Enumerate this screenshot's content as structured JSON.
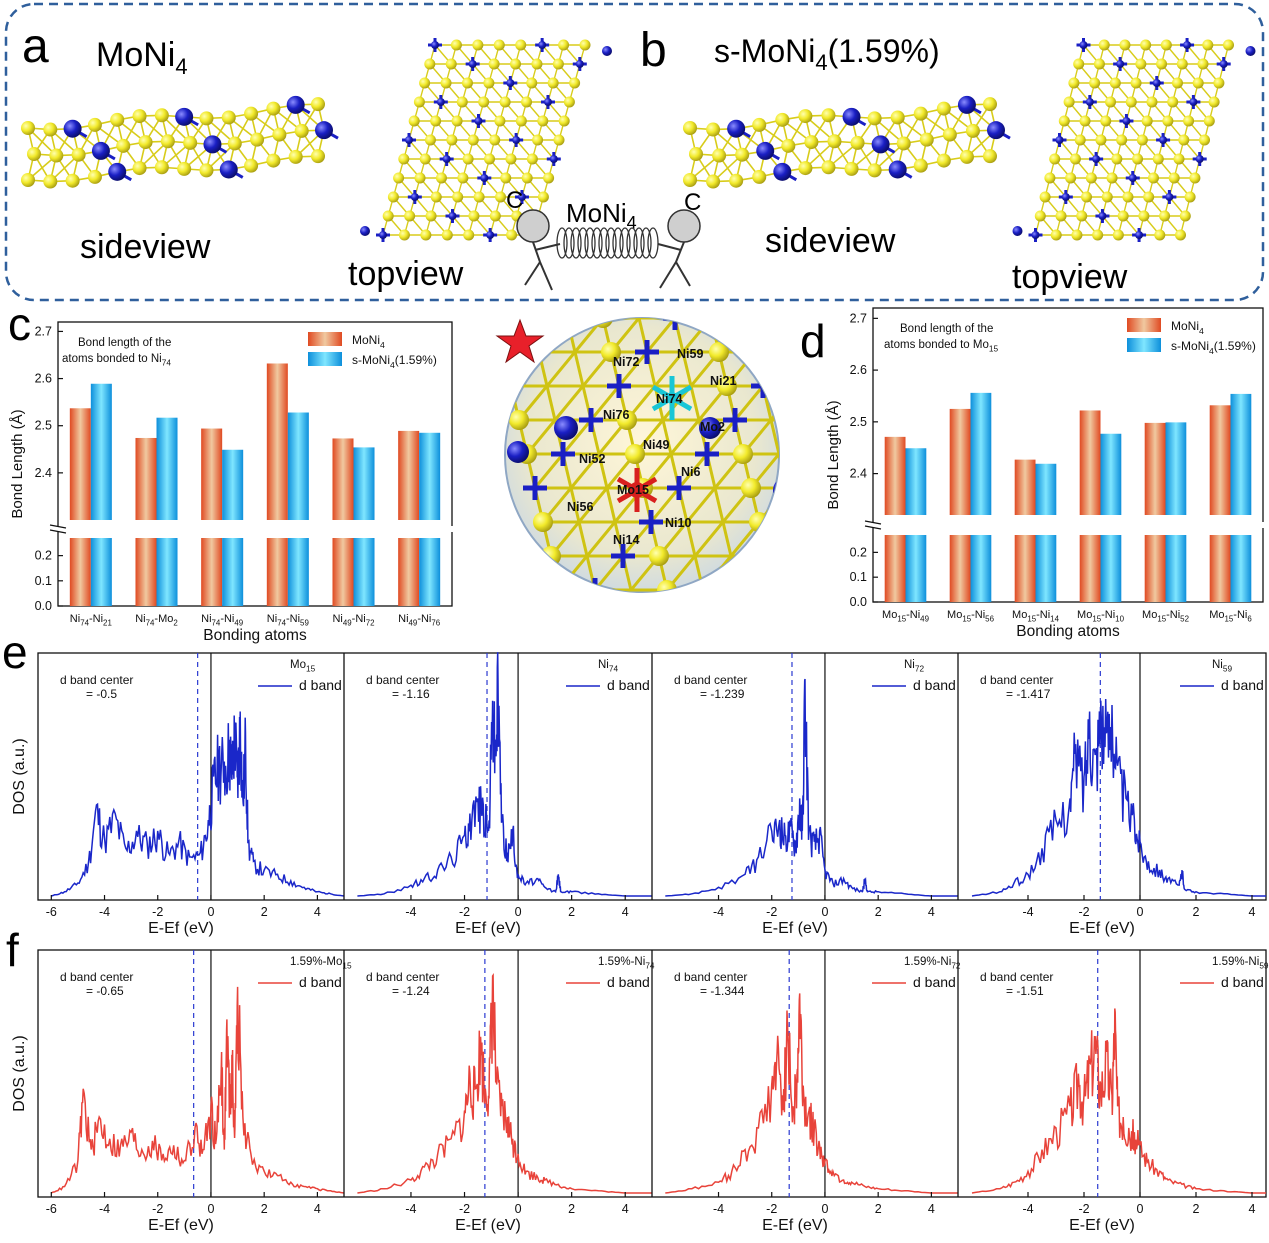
{
  "panel_letters": {
    "a": "a",
    "b": "b",
    "c": "c",
    "d": "d",
    "e": "e",
    "f": "f"
  },
  "structures": {
    "a": {
      "title": "MoNi",
      "title_sub": "4",
      "side_label": "sideview",
      "top_label": "topview"
    },
    "b": {
      "title": "s-MoNi",
      "title_sub": "4",
      "title_suffix": "(1.59%)",
      "side_label": "sideview",
      "top_label": "topview"
    },
    "spring": {
      "label": "MoNi",
      "label_sub": "4",
      "left_letter": "C",
      "right_letter": "C"
    }
  },
  "center_atom_labels": [
    "Ni72",
    "Ni59",
    "Ni21",
    "Ni74",
    "Ni76",
    "Mo2",
    "Ni49",
    "Ni52",
    "Ni6",
    "Mo15",
    "Ni56",
    "Ni10",
    "Ni14"
  ],
  "colors": {
    "ni_atom": "#f2ea2b",
    "mo_atom": "#1a1fc4",
    "bar_moni4": "#e0552a",
    "bar_smoni4": "#17a6e6",
    "e_line": "#1a27c9",
    "f_line": "#e8433a",
    "frame": "#2f5f9c"
  },
  "chart_data": [
    {
      "id": "c",
      "type": "bar",
      "title": "Bond length of the atoms bonded to Ni74",
      "title_lines": [
        "Bond length of the",
        "atoms bonded to Ni",
        "74"
      ],
      "xlabel": "Bonding atoms",
      "ylabel": "Bond Length (Å)",
      "categories": [
        {
          "a": "Ni",
          "as": "74",
          "b": "Ni",
          "bs": "21"
        },
        {
          "a": "Ni",
          "as": "74",
          "b": "Mo",
          "bs": "2"
        },
        {
          "a": "Ni",
          "as": "74",
          "b": "Ni",
          "bs": "49"
        },
        {
          "a": "Ni",
          "as": "74",
          "b": "Ni",
          "bs": "59"
        },
        {
          "a": "Ni",
          "as": "49",
          "b": "Ni",
          "bs": "72"
        },
        {
          "a": "Ni",
          "as": "49",
          "b": "Ni",
          "bs": "76"
        }
      ],
      "series": [
        {
          "name": "MoNi4",
          "label": "MoNi",
          "label_sub": "4",
          "label_suffix": "",
          "values": [
            2.537,
            2.474,
            2.494,
            2.632,
            2.473,
            2.489
          ]
        },
        {
          "name": "s-MoNi4(1.59%)",
          "label": "s-MoNi",
          "label_sub": "4",
          "label_suffix": "(1.59%)",
          "values": [
            2.589,
            2.517,
            2.449,
            2.528,
            2.454,
            2.485
          ]
        }
      ],
      "axis_break": true,
      "upper_ylim": [
        2.3,
        2.72
      ],
      "upper_ticks": [
        "2.4",
        "2.5",
        "2.6",
        "2.7"
      ],
      "lower_ylim": [
        0,
        0.27
      ],
      "lower_ticks": [
        "0.0",
        "0.1",
        "0.2"
      ],
      "legend": "top-right",
      "grid": false
    },
    {
      "id": "d",
      "type": "bar",
      "title": "Bond length of the atoms bonded to Mo15",
      "title_lines": [
        "Bond length of the",
        "atoms bonded to Mo",
        "15"
      ],
      "xlabel": "Bonding atoms",
      "ylabel": "Bond Length (Å)",
      "categories": [
        {
          "a": "Mo",
          "as": "15",
          "b": "Ni",
          "bs": "49"
        },
        {
          "a": "Mo",
          "as": "15",
          "b": "Ni",
          "bs": "56"
        },
        {
          "a": "Mo",
          "as": "15",
          "b": "Ni",
          "bs": "14"
        },
        {
          "a": "Mo",
          "as": "15",
          "b": "Ni",
          "bs": "10"
        },
        {
          "a": "Mo",
          "as": "15",
          "b": "Ni",
          "bs": "52"
        },
        {
          "a": "Mo",
          "as": "15",
          "b": "Ni",
          "bs": "6"
        }
      ],
      "series": [
        {
          "name": "MoNi4",
          "label": "MoNi",
          "label_sub": "4",
          "label_suffix": "",
          "values": [
            2.471,
            2.525,
            2.427,
            2.522,
            2.498,
            2.532
          ]
        },
        {
          "name": "s-MoNi4(1.59%)",
          "label": "s-MoNi",
          "label_sub": "4",
          "label_suffix": "(1.59%)",
          "values": [
            2.449,
            2.556,
            2.419,
            2.477,
            2.499,
            2.554
          ]
        }
      ],
      "axis_break": true,
      "upper_ylim": [
        2.32,
        2.72
      ],
      "upper_ticks": [
        "2.4",
        "2.5",
        "2.6",
        "2.7"
      ],
      "lower_ylim": [
        0,
        0.27
      ],
      "lower_ticks": [
        "0.0",
        "0.1",
        "0.2"
      ],
      "legend": "top-right",
      "grid": false
    },
    {
      "id": "e",
      "type": "line",
      "ylabel": "DOS (a.u.)",
      "xlabel": "E-Ef (eV)",
      "legend": "top-right",
      "panels": [
        {
          "atom": "Mo",
          "atom_sub": "15",
          "atom_prefix": "",
          "legend": "d band",
          "center_title": "d band center",
          "center_value": "= -0.5",
          "center": -0.5,
          "xlim": [
            -6.5,
            5
          ],
          "xticks": [
            "-6",
            "-4",
            "-2",
            "0",
            "2",
            "4"
          ],
          "x": [
            -6.0,
            -5.5,
            -5.0,
            -4.6,
            -4.3,
            -4.0,
            -3.6,
            -3.2,
            -2.8,
            -2.4,
            -2.0,
            -1.6,
            -1.2,
            -0.8,
            -0.4,
            -0.1,
            0.1,
            0.3,
            0.5,
            0.7,
            0.8,
            0.9,
            1.0,
            1.1,
            1.2,
            1.3,
            1.4,
            1.6,
            2.0,
            2.5,
            3.0,
            3.5,
            4.0,
            4.5,
            5.0
          ],
          "y": [
            0.0,
            0.02,
            0.06,
            0.16,
            0.42,
            0.27,
            0.38,
            0.22,
            0.3,
            0.25,
            0.3,
            0.2,
            0.26,
            0.18,
            0.2,
            0.35,
            0.55,
            0.65,
            0.62,
            0.72,
            0.6,
            0.8,
            0.55,
            0.85,
            0.45,
            0.75,
            0.25,
            0.16,
            0.12,
            0.1,
            0.07,
            0.04,
            0.02,
            0.01,
            0.0
          ]
        },
        {
          "atom": "Ni",
          "atom_sub": "74",
          "atom_prefix": "",
          "legend": "d band",
          "center_title": "d band center",
          "center_value": "= -1.16",
          "center": -1.16,
          "xlim": [
            -6.5,
            5
          ],
          "xticks": [
            "-4",
            "-2",
            "0",
            "2",
            "4"
          ],
          "x": [
            -6.0,
            -5.0,
            -4.0,
            -3.5,
            -3.0,
            -2.5,
            -2.0,
            -1.8,
            -1.5,
            -1.3,
            -1.1,
            -0.95,
            -0.85,
            -0.75,
            -0.6,
            -0.4,
            -0.2,
            0.0,
            0.3,
            0.7,
            1.0,
            1.4,
            1.5,
            1.6,
            2.0,
            3.0,
            4.0,
            5.0
          ],
          "y": [
            0.0,
            0.01,
            0.05,
            0.08,
            0.12,
            0.18,
            0.28,
            0.38,
            0.45,
            0.42,
            0.3,
            0.9,
            0.7,
            1.0,
            0.35,
            0.2,
            0.3,
            0.1,
            0.06,
            0.08,
            0.04,
            0.02,
            0.1,
            0.02,
            0.02,
            0.01,
            0.0,
            0.0
          ]
        },
        {
          "atom": "Ni",
          "atom_sub": "72",
          "atom_prefix": "",
          "legend": "d band",
          "center_title": "d band center",
          "center_value": "= -1.239",
          "center": -1.239,
          "xlim": [
            -6.5,
            5
          ],
          "xticks": [
            "-4",
            "-2",
            "0",
            "2",
            "4"
          ],
          "x": [
            -6.0,
            -5.0,
            -4.0,
            -3.0,
            -2.5,
            -2.0,
            -1.7,
            -1.5,
            -1.3,
            -1.1,
            -0.95,
            -0.85,
            -0.75,
            -0.6,
            -0.4,
            -0.2,
            0.0,
            0.3,
            0.7,
            1.0,
            1.4,
            1.5,
            1.6,
            2.0,
            3.0,
            4.0,
            5.0
          ],
          "y": [
            0.0,
            0.01,
            0.04,
            0.1,
            0.18,
            0.3,
            0.35,
            0.28,
            0.32,
            0.25,
            0.45,
            0.3,
            1.0,
            0.3,
            0.25,
            0.3,
            0.12,
            0.06,
            0.08,
            0.04,
            0.02,
            0.08,
            0.02,
            0.02,
            0.01,
            0.0,
            0.0
          ]
        },
        {
          "atom": "Ni",
          "atom_sub": "59",
          "atom_prefix": "",
          "legend": "d band",
          "center_title": "d band center",
          "center_value": "= -1.417",
          "center": -1.417,
          "xlim": [
            -6.5,
            4.5
          ],
          "xticks": [
            "-4",
            "-2",
            "0",
            "2",
            "4"
          ],
          "x": [
            -6.0,
            -5.0,
            -4.5,
            -4.0,
            -3.5,
            -3.0,
            -2.5,
            -2.3,
            -2.0,
            -1.8,
            -1.6,
            -1.4,
            -1.2,
            -1.0,
            -0.8,
            -0.5,
            -0.2,
            0.0,
            0.3,
            0.7,
            1.0,
            1.4,
            1.5,
            1.6,
            2.0,
            3.0,
            4.0,
            4.5
          ],
          "y": [
            0.0,
            0.02,
            0.06,
            0.1,
            0.22,
            0.35,
            0.45,
            0.7,
            0.55,
            0.85,
            0.65,
            0.9,
            0.75,
            0.88,
            0.6,
            0.45,
            0.35,
            0.25,
            0.16,
            0.12,
            0.08,
            0.05,
            0.12,
            0.03,
            0.02,
            0.01,
            0.0,
            0.0
          ]
        }
      ]
    },
    {
      "id": "f",
      "type": "line",
      "ylabel": "DOS (a.u.)",
      "xlabel": "E-Ef (eV)",
      "legend": "top-right",
      "panels": [
        {
          "atom": "Mo",
          "atom_sub": "15",
          "atom_prefix": "1.59%-",
          "legend": "d band",
          "center_title": "d band center",
          "center_value": "= -0.65",
          "center": -0.65,
          "xlim": [
            -6.5,
            5
          ],
          "xticks": [
            "-6",
            "-4",
            "-2",
            "0",
            "2",
            "4"
          ],
          "x": [
            -6.0,
            -5.5,
            -5.0,
            -4.8,
            -4.5,
            -4.2,
            -3.8,
            -3.4,
            -3.0,
            -2.6,
            -2.2,
            -1.8,
            -1.4,
            -1.0,
            -0.6,
            -0.3,
            0.0,
            0.2,
            0.4,
            0.5,
            0.6,
            0.7,
            0.8,
            0.9,
            1.0,
            1.2,
            1.5,
            2.0,
            2.5,
            3.0,
            3.5,
            4.0,
            4.5,
            5.0
          ],
          "y": [
            0.0,
            0.03,
            0.15,
            0.48,
            0.2,
            0.35,
            0.25,
            0.22,
            0.28,
            0.2,
            0.24,
            0.18,
            0.22,
            0.15,
            0.3,
            0.2,
            0.4,
            0.25,
            0.65,
            0.2,
            0.8,
            0.45,
            0.6,
            0.3,
            0.95,
            0.35,
            0.18,
            0.1,
            0.08,
            0.05,
            0.03,
            0.02,
            0.01,
            0.0
          ]
        },
        {
          "atom": "Ni",
          "atom_sub": "74",
          "atom_prefix": "1.59%-",
          "legend": "d band",
          "center_title": "d band center",
          "center_value": "= -1.24",
          "center": -1.24,
          "xlim": [
            -6.5,
            5
          ],
          "xticks": [
            "-4",
            "-2",
            "0",
            "2",
            "4"
          ],
          "x": [
            -6.0,
            -5.0,
            -4.0,
            -3.5,
            -3.0,
            -2.5,
            -2.0,
            -1.8,
            -1.6,
            -1.4,
            -1.2,
            -1.05,
            -0.95,
            -0.8,
            -0.6,
            -0.4,
            -0.2,
            0.0,
            0.3,
            0.7,
            1.0,
            1.5,
            2.0,
            3.0,
            4.0,
            5.0
          ],
          "y": [
            0.0,
            0.02,
            0.06,
            0.12,
            0.18,
            0.25,
            0.38,
            0.55,
            0.48,
            0.72,
            0.45,
            0.62,
            1.0,
            0.5,
            0.4,
            0.35,
            0.25,
            0.18,
            0.1,
            0.08,
            0.06,
            0.04,
            0.02,
            0.01,
            0.0,
            0.0
          ]
        },
        {
          "atom": "Ni",
          "atom_sub": "72",
          "atom_prefix": "1.59%-",
          "legend": "d band",
          "center_title": "d band center",
          "center_value": "= -1.344",
          "center": -1.344,
          "xlim": [
            -6.5,
            5
          ],
          "xticks": [
            "-4",
            "-2",
            "0",
            "2",
            "4"
          ],
          "x": [
            -6.0,
            -5.0,
            -4.0,
            -3.5,
            -3.0,
            -2.5,
            -2.0,
            -1.8,
            -1.6,
            -1.4,
            -1.2,
            -1.05,
            -0.95,
            -0.8,
            -0.6,
            -0.4,
            -0.2,
            0.0,
            0.3,
            0.7,
            1.0,
            1.5,
            2.0,
            3.0,
            4.0,
            5.0
          ],
          "y": [
            0.0,
            0.02,
            0.05,
            0.1,
            0.2,
            0.3,
            0.5,
            0.65,
            0.45,
            0.75,
            0.4,
            0.55,
            0.92,
            0.45,
            0.38,
            0.3,
            0.22,
            0.15,
            0.1,
            0.06,
            0.05,
            0.03,
            0.02,
            0.01,
            0.0,
            0.0
          ]
        },
        {
          "atom": "Ni",
          "atom_sub": "59",
          "atom_prefix": "1.59%-",
          "legend": "d band",
          "center_title": "d band center",
          "center_value": "= -1.51",
          "center": -1.51,
          "xlim": [
            -6.5,
            4.5
          ],
          "xticks": [
            "-4",
            "-2",
            "0",
            "2",
            "4"
          ],
          "x": [
            -6.0,
            -5.0,
            -4.5,
            -4.0,
            -3.5,
            -3.0,
            -2.5,
            -2.2,
            -2.0,
            -1.8,
            -1.6,
            -1.4,
            -1.2,
            -1.0,
            -0.9,
            -0.8,
            -0.6,
            -0.4,
            -0.2,
            0.0,
            0.3,
            0.7,
            1.0,
            1.5,
            2.0,
            3.0,
            4.0,
            4.5
          ],
          "y": [
            0.0,
            0.02,
            0.05,
            0.1,
            0.2,
            0.3,
            0.4,
            0.55,
            0.45,
            0.6,
            0.72,
            0.5,
            0.65,
            0.45,
            0.85,
            0.4,
            0.35,
            0.3,
            0.28,
            0.22,
            0.15,
            0.1,
            0.06,
            0.04,
            0.02,
            0.01,
            0.0,
            0.0
          ]
        }
      ]
    }
  ]
}
